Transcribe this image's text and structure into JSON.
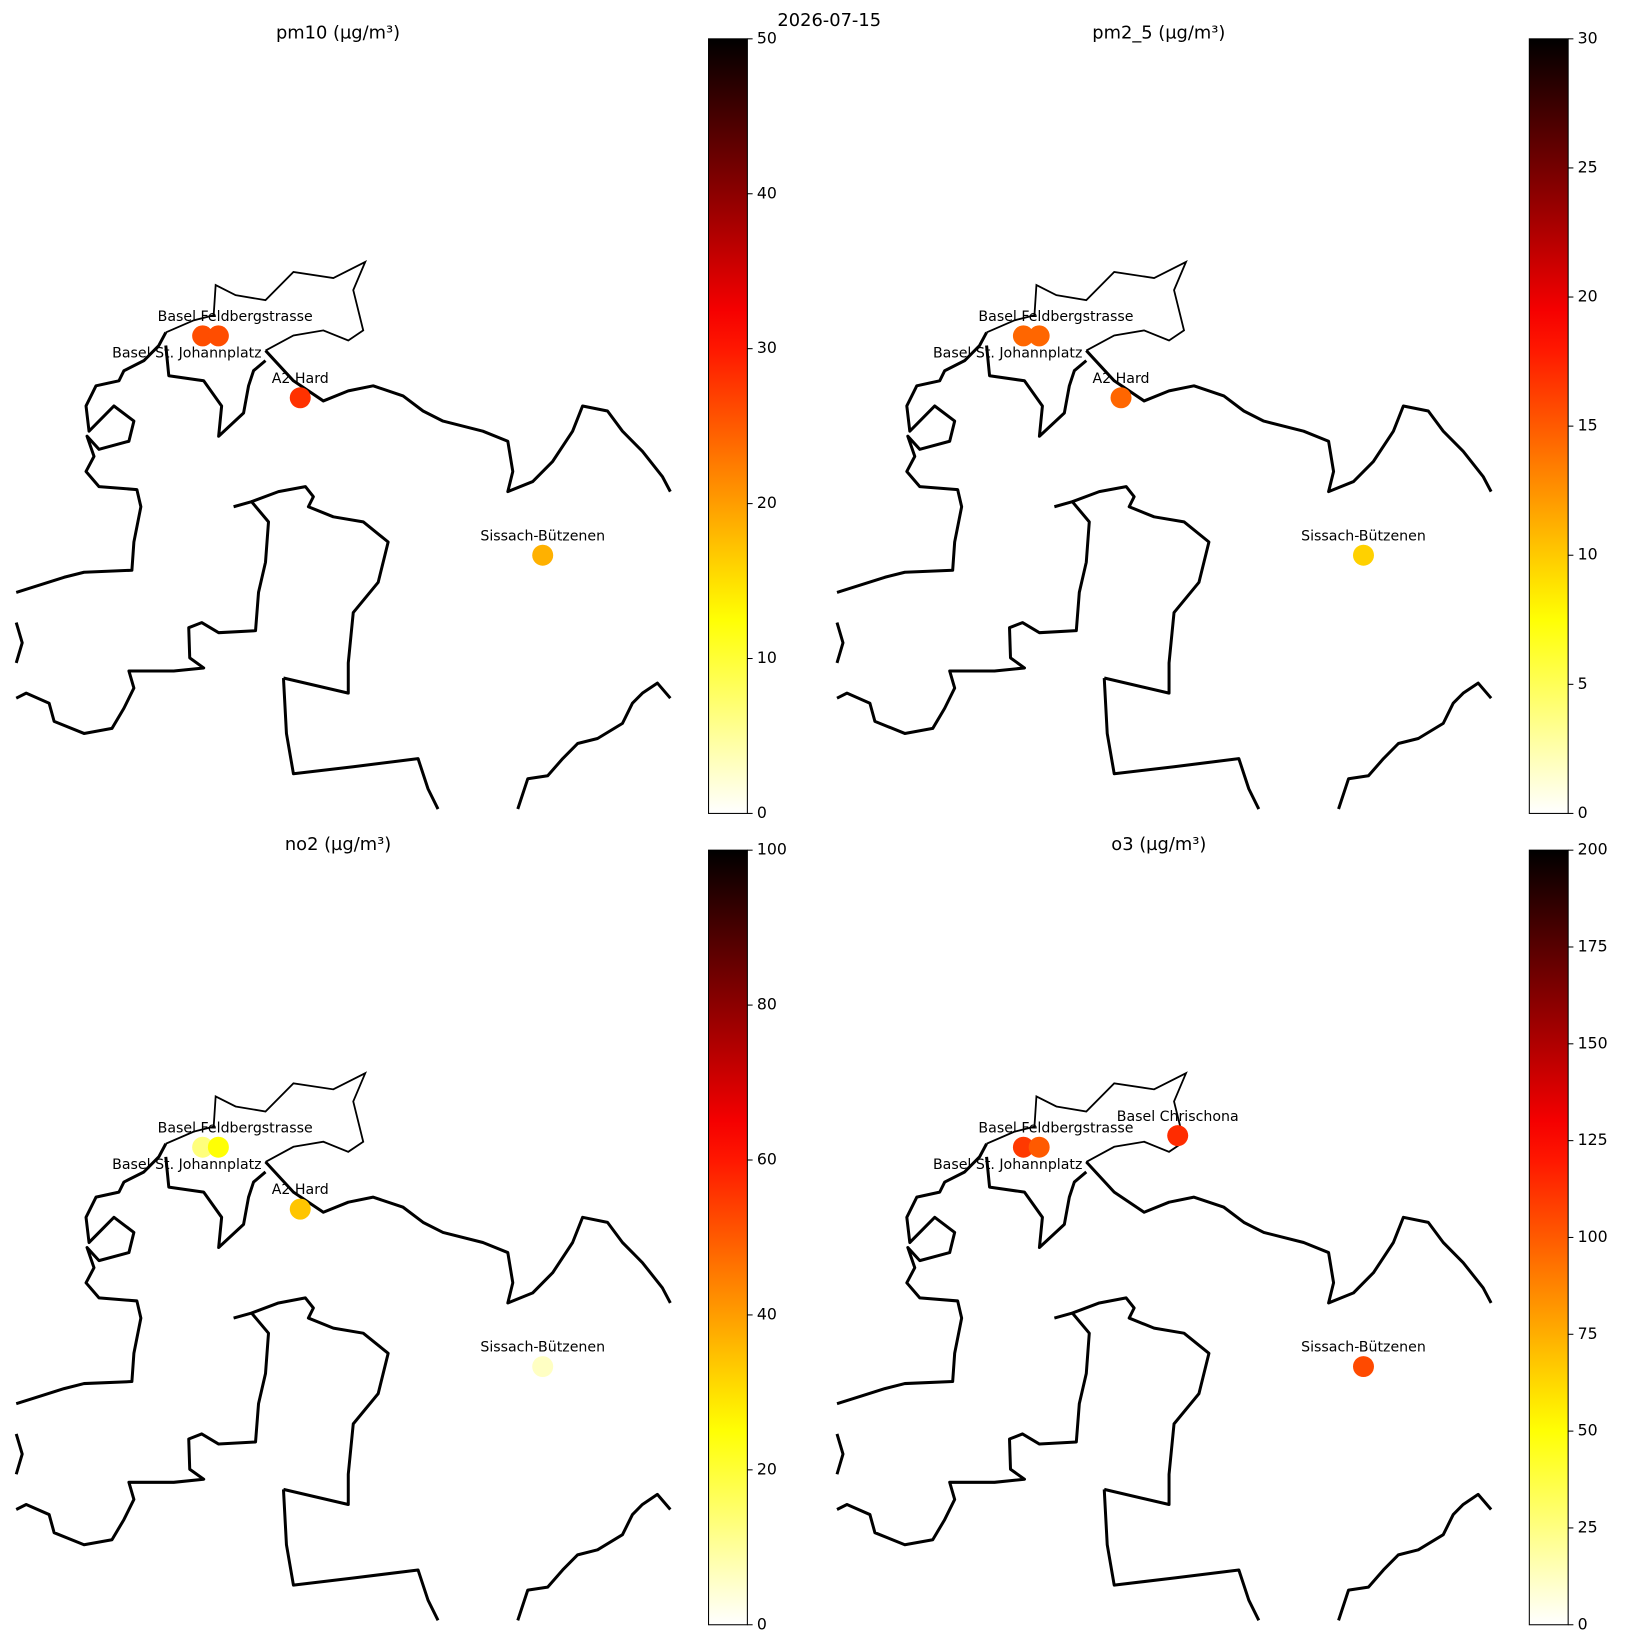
{
  "suptitle": "2026-07-15",
  "chart_data": [
    {
      "type": "map",
      "title": "pm10 (µg/m³)",
      "ylim": [
        0,
        50
      ],
      "yticks": [
        0,
        10,
        20,
        30,
        40,
        50
      ],
      "categories": [
        "Basel St. Johannplatz",
        "Basel Feldbergstrasse",
        "A2 Hard",
        "Sissach-Bützenen"
      ],
      "values": [
        26,
        26,
        28,
        18.5
      ]
    },
    {
      "type": "map",
      "title": "pm2_5 (µg/m³)",
      "ylim": [
        0,
        30
      ],
      "yticks": [
        0,
        5,
        10,
        15,
        20,
        25,
        30
      ],
      "categories": [
        "Basel St. Johannplatz",
        "Basel Feldbergstrasse",
        "A2 Hard",
        "Sissach-Bützenen"
      ],
      "values": [
        14.5,
        14.5,
        14.5,
        9.7
      ]
    },
    {
      "type": "map",
      "title": "no2 (µg/m³)",
      "ylim": [
        0,
        100
      ],
      "yticks": [
        0,
        20,
        40,
        60,
        80,
        100
      ],
      "categories": [
        "Basel St. Johannplatz",
        "Basel Feldbergstrasse",
        "A2 Hard",
        "Sissach-Bützenen"
      ],
      "values": [
        13,
        25,
        34,
        6
      ]
    },
    {
      "type": "map",
      "title": "o3 (µg/m³)",
      "ylim": [
        0,
        200
      ],
      "yticks": [
        0,
        25,
        50,
        75,
        100,
        125,
        150,
        175,
        200
      ],
      "categories": [
        "Basel St. Johannplatz",
        "Basel Feldbergstrasse",
        "Basel Chrischona",
        "Sissach-Bützenen"
      ],
      "values": [
        110,
        100,
        114,
        105
      ]
    }
  ]
}
